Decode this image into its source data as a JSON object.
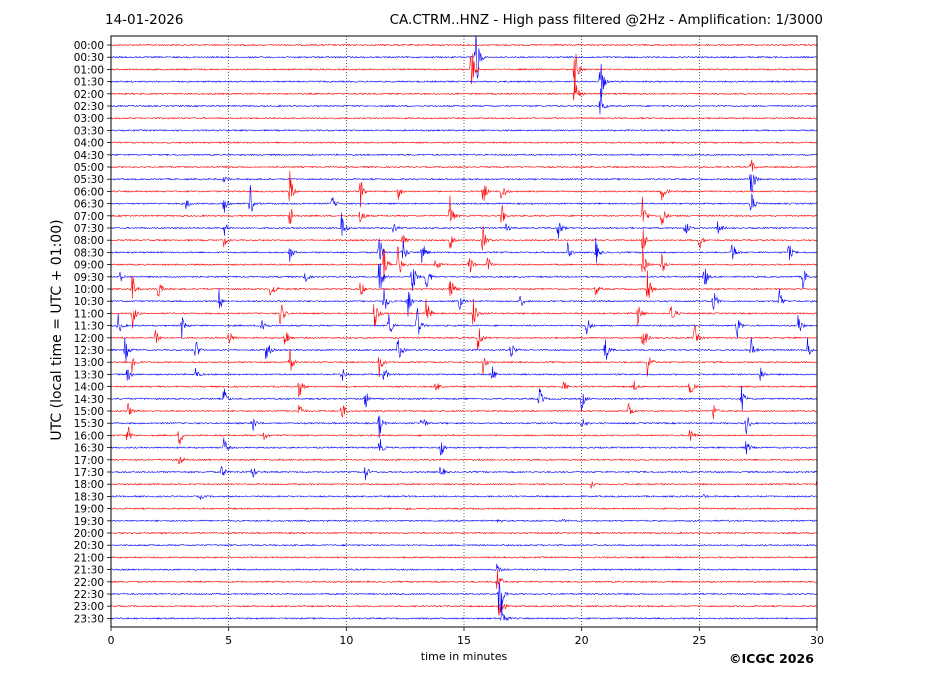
{
  "header": {
    "date": "14-01-2026",
    "title": "CA.CTRM..HNZ - High pass filtered @2Hz - Amplification: 1/3000"
  },
  "footer": {
    "copyright": "©ICGC 2026"
  },
  "chart_data": {
    "type": "line",
    "title": "CA.CTRM..HNZ - High pass filtered @2Hz - Amplification: 1/3000",
    "xlabel": "time in minutes",
    "ylabel": "UTC (local time = UTC + 01:00)",
    "xlim": [
      0,
      30
    ],
    "xticks": [
      0,
      5,
      10,
      15,
      20,
      25,
      30
    ],
    "grid": "vertical dotted lines at every 5 minutes",
    "trace_colors": [
      "#ff0000",
      "#0000ff"
    ],
    "rows": [
      {
        "label": "00:00",
        "color": "#ff0000",
        "events": []
      },
      {
        "label": "00:30",
        "color": "#0000ff",
        "events": [
          [
            15.5,
            55
          ]
        ]
      },
      {
        "label": "01:00",
        "color": "#ff0000",
        "events": [
          [
            15.3,
            35
          ],
          [
            19.7,
            30
          ]
        ]
      },
      {
        "label": "01:30",
        "color": "#0000ff",
        "events": [
          [
            20.8,
            32
          ]
        ]
      },
      {
        "label": "02:00",
        "color": "#ff0000",
        "events": [
          [
            19.7,
            22
          ]
        ]
      },
      {
        "label": "02:30",
        "color": "#0000ff",
        "events": [
          [
            20.8,
            18
          ]
        ]
      },
      {
        "label": "03:00",
        "color": "#ff0000",
        "events": []
      },
      {
        "label": "03:30",
        "color": "#0000ff",
        "events": []
      },
      {
        "label": "04:00",
        "color": "#ff0000",
        "events": []
      },
      {
        "label": "04:30",
        "color": "#0000ff",
        "events": []
      },
      {
        "label": "05:00",
        "color": "#ff0000",
        "events": [
          [
            27.2,
            10
          ]
        ]
      },
      {
        "label": "05:30",
        "color": "#0000ff",
        "events": [
          [
            27.2,
            28
          ],
          [
            4.8,
            4
          ]
        ]
      },
      {
        "label": "06:00",
        "color": "#ff0000",
        "events": [
          [
            7.6,
            22
          ],
          [
            10.6,
            18
          ],
          [
            12.2,
            10
          ],
          [
            15.8,
            20
          ],
          [
            16.6,
            16
          ],
          [
            23.4,
            14
          ]
        ]
      },
      {
        "label": "06:30",
        "color": "#0000ff",
        "events": [
          [
            3.2,
            8
          ],
          [
            4.8,
            20
          ],
          [
            5.9,
            22
          ],
          [
            9.4,
            8
          ],
          [
            27.2,
            16
          ]
        ]
      },
      {
        "label": "07:00",
        "color": "#ff0000",
        "events": [
          [
            7.6,
            16
          ],
          [
            10.6,
            14
          ],
          [
            14.4,
            26
          ],
          [
            16.6,
            14
          ],
          [
            22.6,
            24
          ],
          [
            23.4,
            18
          ]
        ]
      },
      {
        "label": "07:30",
        "color": "#0000ff",
        "events": [
          [
            4.8,
            10
          ],
          [
            9.8,
            18
          ],
          [
            12.0,
            8
          ],
          [
            16.8,
            6
          ],
          [
            19.0,
            16
          ],
          [
            24.4,
            14
          ],
          [
            25.8,
            10
          ]
        ]
      },
      {
        "label": "08:00",
        "color": "#ff0000",
        "events": [
          [
            4.8,
            8
          ],
          [
            12.4,
            10
          ],
          [
            14.4,
            14
          ],
          [
            15.8,
            16
          ],
          [
            22.6,
            18
          ],
          [
            25.0,
            12
          ]
        ]
      },
      {
        "label": "08:30",
        "color": "#0000ff",
        "events": [
          [
            7.6,
            10
          ],
          [
            11.4,
            20
          ],
          [
            12.4,
            16
          ],
          [
            13.2,
            18
          ],
          [
            19.4,
            10
          ],
          [
            20.6,
            14
          ],
          [
            26.4,
            16
          ],
          [
            28.8,
            12
          ]
        ]
      },
      {
        "label": "09:00",
        "color": "#ff0000",
        "events": [
          [
            11.6,
            24
          ],
          [
            12.2,
            22
          ],
          [
            13.8,
            10
          ],
          [
            15.2,
            16
          ],
          [
            16.0,
            12
          ],
          [
            22.6,
            20
          ],
          [
            23.4,
            14
          ]
        ]
      },
      {
        "label": "09:30",
        "color": "#0000ff",
        "events": [
          [
            0.4,
            6
          ],
          [
            8.2,
            12
          ],
          [
            11.4,
            26
          ],
          [
            12.8,
            24
          ],
          [
            13.4,
            22
          ],
          [
            25.2,
            18
          ],
          [
            29.4,
            14
          ]
        ]
      },
      {
        "label": "10:00",
        "color": "#ff0000",
        "events": [
          [
            0.9,
            18
          ],
          [
            2.0,
            14
          ],
          [
            6.8,
            16
          ],
          [
            10.6,
            12
          ],
          [
            14.4,
            20
          ],
          [
            20.6,
            8
          ],
          [
            22.8,
            20
          ]
        ]
      },
      {
        "label": "10:30",
        "color": "#0000ff",
        "events": [
          [
            4.6,
            16
          ],
          [
            11.6,
            18
          ],
          [
            12.6,
            22
          ],
          [
            14.8,
            10
          ],
          [
            17.4,
            8
          ],
          [
            25.6,
            16
          ],
          [
            28.4,
            16
          ]
        ]
      },
      {
        "label": "11:00",
        "color": "#ff0000",
        "events": [
          [
            0.9,
            18
          ],
          [
            7.2,
            20
          ],
          [
            11.2,
            22
          ],
          [
            13.4,
            22
          ],
          [
            15.4,
            24
          ],
          [
            22.4,
            18
          ],
          [
            23.8,
            16
          ]
        ]
      },
      {
        "label": "11:30",
        "color": "#0000ff",
        "events": [
          [
            0.3,
            14
          ],
          [
            3.0,
            14
          ],
          [
            6.4,
            16
          ],
          [
            11.8,
            20
          ],
          [
            13.0,
            24
          ],
          [
            20.2,
            14
          ],
          [
            26.6,
            16
          ],
          [
            29.2,
            16
          ]
        ]
      },
      {
        "label": "12:00",
        "color": "#ff0000",
        "events": [
          [
            1.9,
            14
          ],
          [
            5.0,
            12
          ],
          [
            7.4,
            16
          ],
          [
            15.6,
            20
          ],
          [
            22.6,
            22
          ],
          [
            24.8,
            14
          ]
        ]
      },
      {
        "label": "12:30",
        "color": "#0000ff",
        "events": [
          [
            0.6,
            16
          ],
          [
            3.6,
            14
          ],
          [
            6.6,
            18
          ],
          [
            12.2,
            20
          ],
          [
            17.0,
            10
          ],
          [
            21.0,
            18
          ],
          [
            27.2,
            14
          ],
          [
            29.6,
            14
          ]
        ]
      },
      {
        "label": "13:00",
        "color": "#ff0000",
        "events": [
          [
            0.9,
            14
          ],
          [
            7.6,
            14
          ],
          [
            11.4,
            16
          ],
          [
            15.8,
            14
          ],
          [
            22.8,
            18
          ]
        ]
      },
      {
        "label": "13:30",
        "color": "#0000ff",
        "events": [
          [
            0.7,
            10
          ],
          [
            3.6,
            8
          ],
          [
            9.8,
            10
          ],
          [
            11.6,
            10
          ],
          [
            16.2,
            10
          ],
          [
            27.6,
            10
          ]
        ]
      },
      {
        "label": "14:00",
        "color": "#ff0000",
        "events": [
          [
            8.0,
            14
          ],
          [
            13.8,
            8
          ],
          [
            19.2,
            10
          ],
          [
            22.2,
            8
          ],
          [
            24.6,
            12
          ]
        ]
      },
      {
        "label": "14:30",
        "color": "#0000ff",
        "events": [
          [
            4.8,
            14
          ],
          [
            10.8,
            12
          ],
          [
            18.2,
            16
          ],
          [
            20.0,
            14
          ],
          [
            26.8,
            14
          ]
        ]
      },
      {
        "label": "15:00",
        "color": "#ff0000",
        "events": [
          [
            0.7,
            12
          ],
          [
            8.0,
            10
          ],
          [
            9.8,
            14
          ],
          [
            22.0,
            10
          ],
          [
            25.6,
            10
          ]
        ]
      },
      {
        "label": "15:30",
        "color": "#0000ff",
        "events": [
          [
            6.0,
            14
          ],
          [
            11.4,
            16
          ],
          [
            13.2,
            14
          ],
          [
            20.0,
            12
          ],
          [
            27.0,
            14
          ]
        ]
      },
      {
        "label": "16:00",
        "color": "#ff0000",
        "events": [
          [
            0.7,
            12
          ],
          [
            2.9,
            14
          ],
          [
            6.5,
            6
          ],
          [
            24.6,
            12
          ]
        ]
      },
      {
        "label": "16:30",
        "color": "#0000ff",
        "events": [
          [
            4.8,
            12
          ],
          [
            11.4,
            14
          ],
          [
            14.0,
            14
          ],
          [
            27.0,
            10
          ]
        ]
      },
      {
        "label": "17:00",
        "color": "#ff0000",
        "events": [
          [
            2.9,
            8
          ]
        ]
      },
      {
        "label": "17:30",
        "color": "#0000ff",
        "events": [
          [
            4.7,
            10
          ],
          [
            6.0,
            10
          ],
          [
            10.8,
            10
          ],
          [
            14.0,
            10
          ]
        ]
      },
      {
        "label": "18:00",
        "color": "#ff0000",
        "events": [
          [
            20.4,
            4
          ],
          [
            30.0,
            4
          ]
        ]
      },
      {
        "label": "18:30",
        "color": "#0000ff",
        "events": [
          [
            3.8,
            3
          ],
          [
            25.2,
            2
          ]
        ]
      },
      {
        "label": "19:00",
        "color": "#ff0000",
        "events": [
          [
            12.6,
            2
          ],
          [
            29.0,
            2
          ]
        ]
      },
      {
        "label": "19:30",
        "color": "#0000ff",
        "events": [
          [
            16.4,
            3
          ],
          [
            19.2,
            2
          ]
        ]
      },
      {
        "label": "20:00",
        "color": "#ff0000",
        "events": []
      },
      {
        "label": "20:30",
        "color": "#0000ff",
        "events": []
      },
      {
        "label": "21:00",
        "color": "#ff0000",
        "events": []
      },
      {
        "label": "21:30",
        "color": "#0000ff",
        "events": [
          [
            16.4,
            6
          ]
        ]
      },
      {
        "label": "22:00",
        "color": "#ff0000",
        "events": [
          [
            16.4,
            22
          ]
        ]
      },
      {
        "label": "22:30",
        "color": "#0000ff",
        "events": [
          [
            16.5,
            40
          ]
        ]
      },
      {
        "label": "23:00",
        "color": "#ff0000",
        "events": [
          [
            16.5,
            28
          ]
        ]
      },
      {
        "label": "23:30",
        "color": "#0000ff",
        "events": [
          [
            16.6,
            22
          ]
        ]
      }
    ]
  }
}
